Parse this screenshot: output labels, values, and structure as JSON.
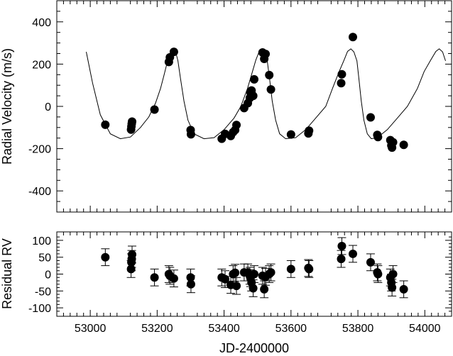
{
  "chart_data": [
    {
      "type": "scatter",
      "panel": "top",
      "ylabel": "Radial Velocity (m/s)",
      "xlim": [
        52900,
        54080
      ],
      "ylim": [
        -500,
        500
      ],
      "x_ticks": [
        53000,
        53200,
        53400,
        53600,
        53800,
        54000
      ],
      "y_ticks": [
        -400,
        -200,
        0,
        200,
        400
      ],
      "y_tick_labels": [
        "-400",
        "-200",
        "0",
        "200",
        "400"
      ],
      "grid": false,
      "series": [
        {
          "kind": "points",
          "marker": "filled-circle",
          "x": [
            53045,
            53122,
            53123,
            53124,
            53125,
            53192,
            53235,
            53238,
            53250,
            53300,
            53301,
            53393,
            53403,
            53420,
            53427,
            53433,
            53437,
            53460,
            53471,
            53477,
            53479,
            53482,
            53487,
            53490,
            53515,
            53520,
            53524,
            53535,
            53540,
            53600,
            53652,
            53654,
            53750,
            53752,
            53785,
            53838,
            53858,
            53860,
            53897,
            53900,
            53902,
            53905,
            53937
          ],
          "y": [
            -87,
            -110,
            -95,
            -82,
            -72,
            -15,
            210,
            232,
            258,
            -112,
            -132,
            -153,
            -130,
            -140,
            -122,
            -112,
            -88,
            -8,
            15,
            40,
            65,
            75,
            50,
            128,
            255,
            225,
            248,
            148,
            80,
            -133,
            -128,
            -115,
            110,
            152,
            328,
            -52,
            -135,
            -145,
            -160,
            -185,
            -195,
            -170,
            -182
          ]
        },
        {
          "kind": "model-curve",
          "period_days": 274,
          "x": [
            52988,
            53007,
            53030,
            53060,
            53090,
            53120,
            53150,
            53175,
            53195,
            53210,
            53220,
            53230,
            53240,
            53249,
            53255,
            53262,
            53270,
            53280,
            53292,
            53310,
            53340,
            53370,
            53400,
            53430,
            53450,
            53470,
            53485,
            53495,
            53505,
            53514,
            53523,
            53529,
            53536,
            53544,
            53554,
            53566,
            53584,
            53614,
            53644,
            53674,
            53704,
            53724,
            53744,
            53759,
            53769,
            53779,
            53788,
            53797,
            53803,
            53810,
            53818,
            53828,
            53840,
            53858,
            53888,
            53918,
            53948,
            53978,
            53998,
            54018,
            54033,
            54043,
            54053,
            54062
          ],
          "y": [
            258,
            110,
            -40,
            -130,
            -153,
            -145,
            -100,
            -50,
            15,
            85,
            145,
            208,
            255,
            272,
            260,
            215,
            130,
            25,
            -65,
            -130,
            -153,
            -148,
            -110,
            -55,
            0,
            85,
            165,
            220,
            260,
            272,
            258,
            215,
            130,
            25,
            -65,
            -130,
            -153,
            -148,
            -110,
            -55,
            0,
            85,
            165,
            220,
            260,
            272,
            258,
            215,
            130,
            25,
            -65,
            -130,
            -153,
            -148,
            -110,
            -55,
            0,
            85,
            165,
            220,
            260,
            272,
            258,
            215
          ]
        }
      ]
    },
    {
      "type": "scatter",
      "panel": "bottom",
      "xlabel": "JD-2400000",
      "ylabel": "Residual RV",
      "xlim": [
        52900,
        54080
      ],
      "ylim": [
        -125,
        125
      ],
      "x_ticks": [
        53000,
        53200,
        53400,
        53600,
        53800,
        54000
      ],
      "x_tick_labels": [
        "53000",
        "53200",
        "53400",
        "53600",
        "53800",
        "54000"
      ],
      "y_ticks": [
        -100,
        -50,
        0,
        50,
        100
      ],
      "y_tick_labels": [
        "-100",
        "-50",
        "0",
        "50",
        "100"
      ],
      "grid": false,
      "series": [
        {
          "kind": "points-with-errorbars",
          "marker": "filled-circle",
          "x": [
            53045,
            53122,
            53123,
            53124,
            53125,
            53192,
            53235,
            53238,
            53250,
            53300,
            53301,
            53393,
            53403,
            53420,
            53427,
            53433,
            53437,
            53460,
            53471,
            53477,
            53479,
            53482,
            53487,
            53490,
            53515,
            53520,
            53524,
            53535,
            53540,
            53600,
            53652,
            53654,
            53750,
            53752,
            53785,
            53838,
            53858,
            53860,
            53897,
            53900,
            53902,
            53905,
            53937
          ],
          "y": [
            50,
            15,
            35,
            45,
            58,
            -10,
            0,
            -5,
            -13,
            -10,
            -30,
            -10,
            -15,
            -32,
            0,
            4,
            -35,
            5,
            5,
            -5,
            -12,
            -25,
            -42,
            0,
            -5,
            -45,
            -8,
            0,
            5,
            15,
            18,
            15,
            45,
            83,
            60,
            35,
            5,
            0,
            -10,
            -25,
            -40,
            0,
            -45
          ],
          "error": [
            25,
            25,
            25,
            25,
            25,
            25,
            25,
            25,
            25,
            25,
            25,
            25,
            25,
            25,
            25,
            25,
            25,
            25,
            25,
            25,
            25,
            25,
            25,
            25,
            25,
            25,
            25,
            25,
            25,
            25,
            25,
            25,
            25,
            25,
            25,
            25,
            25,
            25,
            25,
            25,
            25,
            25,
            25
          ]
        }
      ]
    }
  ]
}
